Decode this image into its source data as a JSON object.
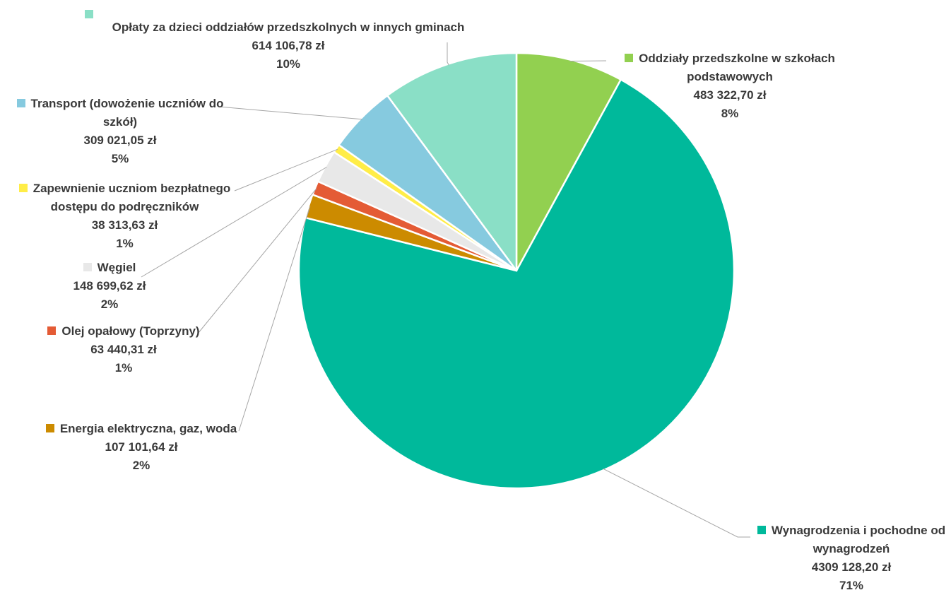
{
  "chart_data": {
    "type": "pie",
    "title": "",
    "slices": [
      {
        "name": "Oddziały przedszkolne w szkołach podstawowych",
        "value_text": "483 322,70 zł",
        "percent_text": "8%",
        "value": 483322.7,
        "color": "#92d050"
      },
      {
        "name": "Wynagrodzenia i pochodne od wynagrodzeń",
        "value_text": "4309 128,20 zł",
        "percent_text": "71%",
        "value": 4309128.2,
        "color": "#00b99b"
      },
      {
        "name": "Energia elektryczna, gaz, woda",
        "value_text": "107 101,64 zł",
        "percent_text": "2%",
        "value": 107101.64,
        "color": "#cc8b00"
      },
      {
        "name": "Olej opałowy (Toprzyny)",
        "value_text": "63 440,31 zł",
        "percent_text": "1%",
        "value": 63440.31,
        "color": "#e45b35"
      },
      {
        "name": "Węgiel",
        "value_text": "148 699,62 zł",
        "percent_text": "2%",
        "value": 148699.62,
        "color": "#e8e8e8"
      },
      {
        "name": "Zapewnienie uczniom bezpłatnego dostępu do podręczników",
        "value_text": "38 313,63 zł",
        "percent_text": "1%",
        "value": 38313.63,
        "color": "#ffed47"
      },
      {
        "name": "Transport (dowożenie uczniów do szkół)",
        "value_text": "309 021,05 zł",
        "percent_text": "5%",
        "value": 309021.05,
        "color": "#86cadf"
      },
      {
        "name": "Opłaty za dzieci oddziałów przedszkolnych w innych gminach",
        "value_text": "614 106,78 zł",
        "percent_text": "10%",
        "value": 614106.78,
        "color": "#8adfc6"
      }
    ],
    "legend": "none",
    "data_labels": "outside-with-leader-lines"
  },
  "labels": {
    "oddzialy": {
      "l1": "Oddziały przedszkolne w szkołach",
      "l2": "podstawowych"
    },
    "wynagrodzenia": {
      "l1": "Wynagrodzenia i pochodne od",
      "l2": "wynagrodzeń"
    },
    "energia": {
      "l1": "Energia elektryczna, gaz, woda"
    },
    "olej": {
      "l1": "Olej opałowy (Toprzyny)"
    },
    "wegiel": {
      "l1": "Węgiel"
    },
    "zapewnienie": {
      "l1": "Zapewnienie uczniom bezpłatnego",
      "l2": "dostępu do podręczników"
    },
    "transport": {
      "l1": "Transport (dowożenie uczniów do",
      "l2": "szkół)"
    },
    "oplaty": {
      "l1": "Opłaty za dzieci oddziałów przedszkolnych w innych gminach"
    }
  }
}
